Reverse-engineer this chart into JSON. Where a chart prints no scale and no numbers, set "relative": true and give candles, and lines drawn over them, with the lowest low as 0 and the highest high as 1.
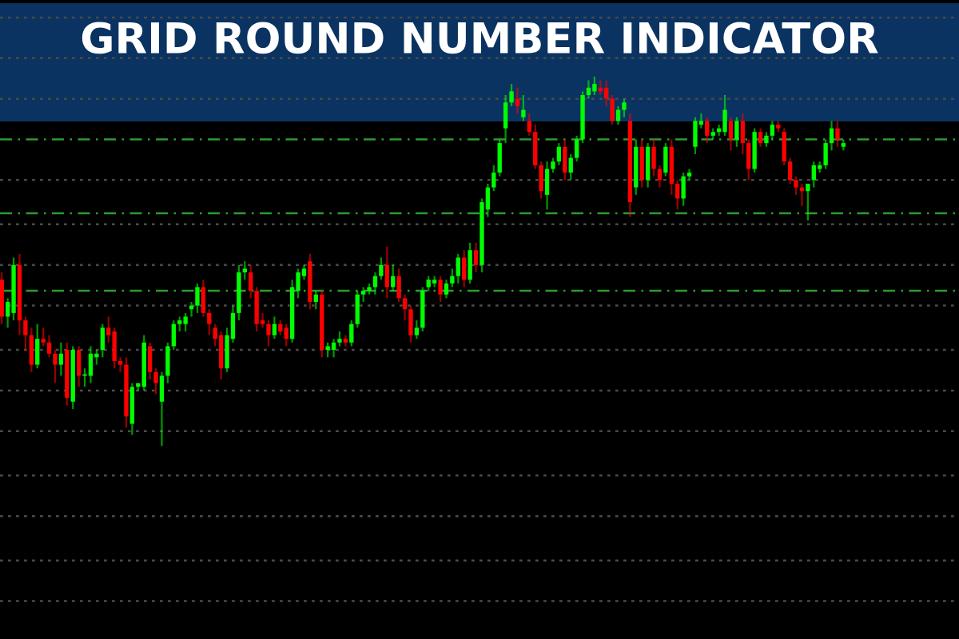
{
  "chart_data": {
    "type": "candlestick",
    "title": "GRID ROUND NUMBER INDICATOR",
    "relative": true,
    "categories": [
      null,
      null,
      null,
      null,
      null,
      null,
      null,
      null,
      null,
      null,
      null,
      null,
      null,
      null,
      null,
      null,
      null,
      null,
      null,
      null,
      null,
      null,
      null,
      null,
      null,
      null,
      null,
      null,
      null,
      null,
      null,
      null,
      null,
      null,
      null,
      null,
      null,
      null,
      null,
      null,
      null,
      null,
      null,
      null,
      null,
      null,
      null,
      null,
      null,
      null,
      null,
      null,
      null,
      null,
      null,
      null,
      null,
      null,
      null,
      null,
      null,
      null,
      null,
      null,
      null,
      null,
      null,
      null,
      null,
      null,
      null,
      null,
      null,
      null,
      null,
      null,
      null,
      null,
      null,
      null,
      null,
      null,
      null,
      null,
      null,
      null,
      null,
      null,
      null,
      null,
      null,
      null,
      null,
      null,
      null,
      null,
      null,
      null,
      null,
      null,
      null,
      null,
      null,
      null,
      null,
      null,
      null,
      null,
      null,
      null,
      null,
      null,
      null,
      null,
      null,
      null,
      null,
      null,
      null,
      null,
      null,
      null,
      null,
      null,
      null,
      null,
      null,
      null,
      null,
      null,
      null,
      null,
      null,
      null,
      null,
      null,
      null,
      null,
      null,
      null,
      null,
      null,
      null
    ],
    "ohlc": [
      [
        0.45,
        0.47,
        0.33,
        0.35
      ],
      [
        0.35,
        0.4,
        0.32,
        0.39
      ],
      [
        0.36,
        0.51,
        0.34,
        0.49
      ],
      [
        0.49,
        0.52,
        0.3,
        0.34
      ],
      [
        0.34,
        0.35,
        0.26,
        0.3
      ],
      [
        0.3,
        0.32,
        0.2,
        0.22
      ],
      [
        0.22,
        0.33,
        0.21,
        0.29
      ],
      [
        0.29,
        0.32,
        0.27,
        0.28
      ],
      [
        0.28,
        0.3,
        0.24,
        0.25
      ],
      [
        0.25,
        0.26,
        0.17,
        0.22
      ],
      [
        0.22,
        0.28,
        0.19,
        0.25
      ],
      [
        0.26,
        0.28,
        0.11,
        0.13
      ],
      [
        0.12,
        0.27,
        0.1,
        0.26
      ],
      [
        0.26,
        0.27,
        0.16,
        0.19
      ],
      [
        0.19,
        0.21,
        0.16,
        0.19
      ],
      [
        0.19,
        0.27,
        0.17,
        0.25
      ],
      [
        0.24,
        0.26,
        0.22,
        0.25
      ],
      [
        0.26,
        0.33,
        0.24,
        0.32
      ],
      [
        0.32,
        0.35,
        0.28,
        0.3
      ],
      [
        0.31,
        0.32,
        0.21,
        0.23
      ],
      [
        0.23,
        0.24,
        0.2,
        0.22
      ],
      [
        0.22,
        0.24,
        0.05,
        0.08
      ],
      [
        0.06,
        0.17,
        0.03,
        0.16
      ],
      [
        0.16,
        0.17,
        0.15,
        0.17
      ],
      [
        0.16,
        0.3,
        0.15,
        0.28
      ],
      [
        0.27,
        0.28,
        0.18,
        0.2
      ],
      [
        0.2,
        0.21,
        0.14,
        0.17
      ],
      [
        0.12,
        0.2,
        0.0,
        0.19
      ],
      [
        0.19,
        0.28,
        0.17,
        0.27
      ],
      [
        0.27,
        0.34,
        0.26,
        0.33
      ],
      [
        0.33,
        0.35,
        0.31,
        0.34
      ],
      [
        0.33,
        0.36,
        0.31,
        0.35
      ],
      [
        0.37,
        0.39,
        0.35,
        0.38
      ],
      [
        0.38,
        0.44,
        0.36,
        0.43
      ],
      [
        0.43,
        0.45,
        0.35,
        0.36
      ],
      [
        0.36,
        0.37,
        0.3,
        0.33
      ],
      [
        0.32,
        0.33,
        0.27,
        0.29
      ],
      [
        0.3,
        0.31,
        0.18,
        0.21
      ],
      [
        0.21,
        0.32,
        0.2,
        0.3
      ],
      [
        0.29,
        0.38,
        0.28,
        0.36
      ],
      [
        0.36,
        0.49,
        0.34,
        0.47
      ],
      [
        0.47,
        0.5,
        0.45,
        0.48
      ],
      [
        0.47,
        0.49,
        0.4,
        0.42
      ],
      [
        0.42,
        0.43,
        0.31,
        0.33
      ],
      [
        0.34,
        0.36,
        0.32,
        0.33
      ],
      [
        0.33,
        0.34,
        0.27,
        0.3
      ],
      [
        0.3,
        0.35,
        0.29,
        0.33
      ],
      [
        0.33,
        0.34,
        0.3,
        0.31
      ],
      [
        0.32,
        0.33,
        0.27,
        0.29
      ],
      [
        0.29,
        0.45,
        0.28,
        0.43
      ],
      [
        0.42,
        0.48,
        0.4,
        0.47
      ],
      [
        0.46,
        0.49,
        0.45,
        0.48
      ],
      [
        0.5,
        0.52,
        0.37,
        0.39
      ],
      [
        0.39,
        0.42,
        0.37,
        0.41
      ],
      [
        0.41,
        0.42,
        0.24,
        0.26
      ],
      [
        0.26,
        0.28,
        0.24,
        0.27
      ],
      [
        0.26,
        0.29,
        0.24,
        0.28
      ],
      [
        0.28,
        0.31,
        0.27,
        0.29
      ],
      [
        0.29,
        0.3,
        0.27,
        0.28
      ],
      [
        0.28,
        0.34,
        0.27,
        0.33
      ],
      [
        0.33,
        0.42,
        0.32,
        0.41
      ],
      [
        0.41,
        0.43,
        0.39,
        0.42
      ],
      [
        0.42,
        0.44,
        0.41,
        0.43
      ],
      [
        0.43,
        0.47,
        0.41,
        0.46
      ],
      [
        0.46,
        0.51,
        0.45,
        0.49
      ],
      [
        0.49,
        0.54,
        0.4,
        0.43
      ],
      [
        0.43,
        0.49,
        0.42,
        0.46
      ],
      [
        0.46,
        0.48,
        0.39,
        0.4
      ],
      [
        0.4,
        0.41,
        0.34,
        0.37
      ],
      [
        0.37,
        0.38,
        0.28,
        0.3
      ],
      [
        0.3,
        0.34,
        0.29,
        0.32
      ],
      [
        0.32,
        0.43,
        0.31,
        0.42
      ],
      [
        0.43,
        0.46,
        0.42,
        0.45
      ],
      [
        0.44,
        0.46,
        0.43,
        0.45
      ],
      [
        0.45,
        0.46,
        0.39,
        0.41
      ],
      [
        0.41,
        0.45,
        0.4,
        0.44
      ],
      [
        0.44,
        0.48,
        0.43,
        0.46
      ],
      [
        0.46,
        0.52,
        0.44,
        0.51
      ],
      [
        0.51,
        0.53,
        0.43,
        0.45
      ],
      [
        0.45,
        0.55,
        0.44,
        0.53
      ],
      [
        0.53,
        0.55,
        0.47,
        0.49
      ],
      [
        0.49,
        0.67,
        0.47,
        0.66
      ],
      [
        0.64,
        0.71,
        0.62,
        0.7
      ],
      [
        0.7,
        0.76,
        0.69,
        0.74
      ],
      [
        0.74,
        0.83,
        0.73,
        0.82
      ],
      [
        0.86,
        0.95,
        0.82,
        0.93
      ],
      [
        0.93,
        0.98,
        0.92,
        0.96
      ],
      [
        0.94,
        0.97,
        0.9,
        0.92
      ],
      [
        0.89,
        0.95,
        0.88,
        0.91
      ],
      [
        0.88,
        0.9,
        0.84,
        0.85
      ],
      [
        0.85,
        0.87,
        0.75,
        0.76
      ],
      [
        0.76,
        0.77,
        0.67,
        0.69
      ],
      [
        0.68,
        0.77,
        0.64,
        0.75
      ],
      [
        0.75,
        0.78,
        0.74,
        0.77
      ],
      [
        0.77,
        0.82,
        0.76,
        0.81
      ],
      [
        0.81,
        0.83,
        0.72,
        0.74
      ],
      [
        0.74,
        0.79,
        0.72,
        0.78
      ],
      [
        0.78,
        0.84,
        0.77,
        0.83
      ],
      [
        0.83,
        0.96,
        0.82,
        0.95
      ],
      [
        0.95,
        0.99,
        0.94,
        0.97
      ],
      [
        0.96,
        1.0,
        0.95,
        0.98
      ],
      [
        0.97,
        0.99,
        0.95,
        0.96
      ],
      [
        0.97,
        0.99,
        0.92,
        0.94
      ],
      [
        0.94,
        0.95,
        0.87,
        0.88
      ],
      [
        0.88,
        0.92,
        0.87,
        0.91
      ],
      [
        0.91,
        0.94,
        0.89,
        0.93
      ],
      [
        0.88,
        0.9,
        0.62,
        0.66
      ],
      [
        0.7,
        0.83,
        0.68,
        0.81
      ],
      [
        0.81,
        0.83,
        0.7,
        0.72
      ],
      [
        0.72,
        0.82,
        0.7,
        0.81
      ],
      [
        0.81,
        0.83,
        0.73,
        0.75
      ],
      [
        0.75,
        0.76,
        0.7,
        0.72
      ],
      [
        0.74,
        0.82,
        0.73,
        0.81
      ],
      [
        0.81,
        0.83,
        0.68,
        0.71
      ],
      [
        0.71,
        0.72,
        0.64,
        0.67
      ],
      [
        0.67,
        0.74,
        0.65,
        0.73
      ],
      [
        0.73,
        0.75,
        0.72,
        0.74
      ],
      [
        0.81,
        0.89,
        0.79,
        0.88
      ],
      [
        0.87,
        0.9,
        0.86,
        0.88
      ],
      [
        0.88,
        0.89,
        0.82,
        0.84
      ],
      [
        0.84,
        0.86,
        0.83,
        0.85
      ],
      [
        0.85,
        0.87,
        0.84,
        0.86
      ],
      [
        0.85,
        0.95,
        0.84,
        0.91
      ],
      [
        0.88,
        0.89,
        0.8,
        0.83
      ],
      [
        0.83,
        0.89,
        0.81,
        0.88
      ],
      [
        0.88,
        0.9,
        0.79,
        0.82
      ],
      [
        0.82,
        0.83,
        0.72,
        0.75
      ],
      [
        0.75,
        0.86,
        0.74,
        0.85
      ],
      [
        0.85,
        0.86,
        0.81,
        0.82
      ],
      [
        0.82,
        0.85,
        0.81,
        0.84
      ],
      [
        0.84,
        0.88,
        0.83,
        0.87
      ],
      [
        0.87,
        0.88,
        0.85,
        0.86
      ],
      [
        0.85,
        0.86,
        0.76,
        0.77
      ],
      [
        0.77,
        0.78,
        0.71,
        0.72
      ],
      [
        0.72,
        0.73,
        0.68,
        0.7
      ],
      [
        0.7,
        0.71,
        0.65,
        0.69
      ],
      [
        0.69,
        0.71,
        0.61,
        0.71
      ],
      [
        0.72,
        0.77,
        0.7,
        0.76
      ],
      [
        0.75,
        0.77,
        0.74,
        0.76
      ],
      [
        0.76,
        0.83,
        0.75,
        0.82
      ],
      [
        0.82,
        0.88,
        0.8,
        0.86
      ],
      [
        0.86,
        0.88,
        0.81,
        0.83
      ],
      [
        0.81,
        0.83,
        0.8,
        0.82
      ]
    ],
    "colors": [
      "#ff0000",
      "#00ff00",
      "#00ff00",
      "#ff0000",
      "#ff0000",
      "#ff0000",
      "#00ff00",
      "#ff0000",
      "#ff0000",
      "#ff0000",
      "#00ff00",
      "#ff0000",
      "#00ff00",
      "#ff0000",
      "#00ff00",
      "#00ff00",
      "#00ff00",
      "#00ff00",
      "#ff0000",
      "#ff0000",
      "#ff0000",
      "#ff0000",
      "#00ff00",
      "#00ff00",
      "#00ff00",
      "#ff0000",
      "#ff0000",
      "#00ff00",
      "#00ff00",
      "#00ff00",
      "#00ff00",
      "#00ff00",
      "#00ff00",
      "#00ff00",
      "#ff0000",
      "#ff0000",
      "#ff0000",
      "#ff0000",
      "#00ff00",
      "#00ff00",
      "#00ff00",
      "#00ff00",
      "#ff0000",
      "#ff0000",
      "#ff0000",
      "#ff0000",
      "#00ff00",
      "#ff0000",
      "#ff0000",
      "#00ff00",
      "#00ff00",
      "#00ff00",
      "#ff0000",
      "#00ff00",
      "#ff0000",
      "#00ff00",
      "#00ff00",
      "#00ff00",
      "#ff0000",
      "#00ff00",
      "#00ff00",
      "#00ff00",
      "#00ff00",
      "#00ff00",
      "#00ff00",
      "#ff0000",
      "#00ff00",
      "#ff0000",
      "#ff0000",
      "#ff0000",
      "#00ff00",
      "#00ff00",
      "#00ff00",
      "#00ff00",
      "#ff0000",
      "#00ff00",
      "#00ff00",
      "#00ff00",
      "#ff0000",
      "#00ff00",
      "#ff0000",
      "#00ff00",
      "#00ff00",
      "#00ff00",
      "#00ff00",
      "#00ff00",
      "#00ff00",
      "#ff0000",
      "#00ff00",
      "#ff0000",
      "#ff0000",
      "#ff0000",
      "#00ff00",
      "#00ff00",
      "#00ff00",
      "#ff0000",
      "#00ff00",
      "#00ff00",
      "#00ff00",
      "#00ff00",
      "#00ff00",
      "#ff0000",
      "#ff0000",
      "#ff0000",
      "#00ff00",
      "#00ff00",
      "#ff0000",
      "#00ff00",
      "#ff0000",
      "#00ff00",
      "#ff0000",
      "#ff0000",
      "#00ff00",
      "#ff0000",
      "#ff0000",
      "#00ff00",
      "#00ff00",
      "#00ff00",
      "#00ff00",
      "#ff0000",
      "#00ff00",
      "#00ff00",
      "#00ff00",
      "#ff0000",
      "#00ff00",
      "#ff0000",
      "#ff0000",
      "#00ff00",
      "#ff0000",
      "#00ff00",
      "#00ff00",
      "#ff0000",
      "#ff0000",
      "#ff0000",
      "#ff0000",
      "#ff0000",
      "#00ff00",
      "#00ff00",
      "#00ff00",
      "#00ff00",
      "#00ff00",
      "#ff0000",
      "#00ff00"
    ],
    "ref_lines": [
      {
        "axis": "y",
        "value": 1.16,
        "color": "#4a4a4a",
        "line_style": "dotted"
      },
      {
        "axis": "y",
        "value": 1.05,
        "color": "#4a4a4a",
        "line_style": "dotted"
      },
      {
        "axis": "y",
        "value": 0.94,
        "color": "#4a4a4a",
        "line_style": "dotted"
      },
      {
        "axis": "y",
        "value": 0.83,
        "color": "#2e9a2e",
        "line_style": "dashed"
      },
      {
        "axis": "y",
        "value": 0.72,
        "color": "#4a4a4a",
        "line_style": "dotted"
      },
      {
        "axis": "y",
        "value": 0.63,
        "color": "#2e9a2e",
        "line_style": "dashed"
      },
      {
        "axis": "y",
        "value": 0.6,
        "color": "#4a4a4a",
        "line_style": "dotted"
      },
      {
        "axis": "y",
        "value": 0.49,
        "color": "#4a4a4a",
        "line_style": "dotted"
      },
      {
        "axis": "y",
        "value": 0.42,
        "color": "#2e9a2e",
        "line_style": "dashed"
      },
      {
        "axis": "y",
        "value": 0.38,
        "color": "#4a4a4a",
        "line_style": "dotted"
      },
      {
        "axis": "y",
        "value": 0.26,
        "color": "#4a4a4a",
        "line_style": "dotted"
      },
      {
        "axis": "y",
        "value": 0.15,
        "color": "#4a4a4a",
        "line_style": "dotted"
      },
      {
        "axis": "y",
        "value": 0.04,
        "color": "#4a4a4a",
        "line_style": "dotted"
      },
      {
        "axis": "y",
        "value": -0.08,
        "color": "#4a4a4a",
        "line_style": "dotted"
      },
      {
        "axis": "y",
        "value": -0.19,
        "color": "#4a4a4a",
        "line_style": "dotted"
      },
      {
        "axis": "y",
        "value": -0.31,
        "color": "#4a4a4a",
        "line_style": "dotted"
      },
      {
        "axis": "y",
        "value": -0.42,
        "color": "#4a4a4a",
        "line_style": "dotted"
      }
    ]
  }
}
